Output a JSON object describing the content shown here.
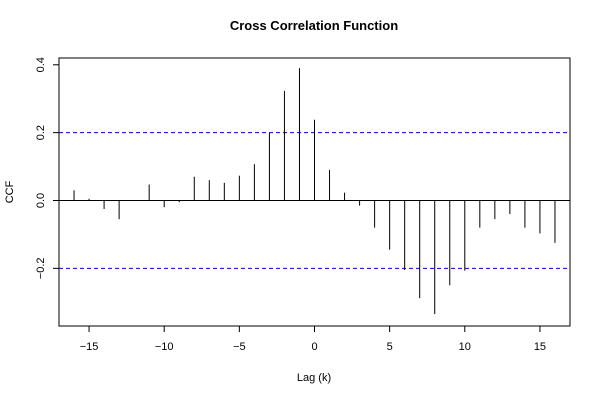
{
  "chart_data": {
    "type": "bar",
    "title": "Cross Correlation Function",
    "xlabel": "Lag (k)",
    "ylabel": "CCF",
    "xlim": [
      -17,
      17
    ],
    "ylim": [
      -0.37,
      0.42
    ],
    "x_ticks": [
      -15,
      -10,
      -5,
      0,
      5,
      10,
      15
    ],
    "y_ticks": [
      -0.2,
      0.0,
      0.2,
      0.4
    ],
    "x_tick_labels": [
      "−15",
      "−10",
      "−5",
      "0",
      "5",
      "10",
      "15"
    ],
    "y_tick_labels": [
      "−0.2",
      "0.0",
      "0.2",
      "0.4"
    ],
    "confidence_bounds": [
      0.2,
      -0.2
    ],
    "colors": {
      "bars": "#000000",
      "bounds": "#0000ff",
      "zero_line": "#000000"
    },
    "lags": [
      -16,
      -15,
      -14,
      -13,
      -12,
      -11,
      -10,
      -9,
      -8,
      -7,
      -6,
      -5,
      -4,
      -3,
      -2,
      -1,
      0,
      1,
      2,
      3,
      4,
      5,
      6,
      7,
      8,
      9,
      10,
      11,
      12,
      13,
      14,
      15,
      16
    ],
    "values": [
      0.03,
      0.005,
      -0.025,
      -0.055,
      0.0,
      0.047,
      -0.02,
      -0.005,
      0.07,
      0.06,
      0.052,
      0.073,
      0.107,
      0.2,
      0.323,
      0.39,
      0.238,
      0.09,
      0.023,
      -0.015,
      -0.08,
      -0.145,
      -0.205,
      -0.288,
      -0.335,
      -0.25,
      -0.207,
      -0.08,
      -0.055,
      -0.04,
      -0.08,
      -0.097,
      -0.125
    ]
  }
}
